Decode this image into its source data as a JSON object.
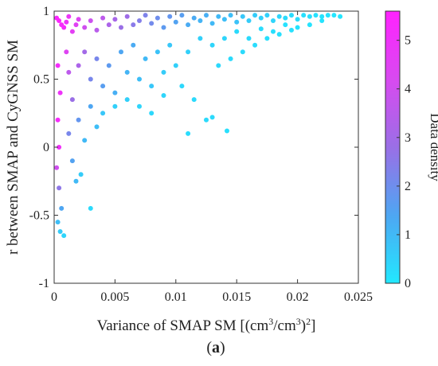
{
  "chart_data": {
    "type": "scatter",
    "title": "",
    "xlabel": {
      "base": "Variance of SMAP SM [(cm",
      "sup1": "3",
      "mid": "/cm",
      "sup2": "3",
      "close": ")",
      "sup3": "2",
      "end": "]"
    },
    "ylabel": "r between SMAP and CyGNSS SM",
    "xlim": [
      0,
      0.025
    ],
    "ylim": [
      -1,
      1
    ],
    "xticks": [
      0,
      0.005,
      0.01,
      0.015,
      0.02,
      0.025
    ],
    "xtick_labels": [
      "0",
      "0.005",
      "0.01",
      "0.015",
      "0.02",
      "0.025"
    ],
    "yticks": [
      -1,
      -0.5,
      0,
      0.5,
      1
    ],
    "ytick_labels": [
      "-1",
      "-0.5",
      "0",
      "0.5",
      "1"
    ],
    "grid": false,
    "colorbar": {
      "label": "Data density",
      "range": [
        0,
        5.6
      ],
      "ticks": [
        0,
        1,
        2,
        3,
        4,
        5
      ],
      "tick_labels": [
        "0",
        "1",
        "2",
        "3",
        "4",
        "5"
      ],
      "colors": [
        "#22e8ff",
        "#4ea6f2",
        "#9a6fe6",
        "#d84af0",
        "#ff22ff"
      ]
    },
    "panel_label": {
      "open": "(",
      "letter": "a",
      "close": ")"
    },
    "point_color_low": "#22e8ff",
    "point_color_high": "#ff22ff",
    "series": [
      {
        "points_x_r_density": [
          [
            0.0002,
            0.95,
            5.4
          ],
          [
            0.0004,
            0.93,
            5.5
          ],
          [
            0.0006,
            0.9,
            5.3
          ],
          [
            0.0008,
            0.88,
            5.2
          ],
          [
            0.001,
            0.92,
            5.0
          ],
          [
            0.0012,
            0.96,
            4.9
          ],
          [
            0.0015,
            0.85,
            4.6
          ],
          [
            0.0018,
            0.9,
            4.5
          ],
          [
            0.002,
            0.94,
            4.4
          ],
          [
            0.0025,
            0.88,
            4.0
          ],
          [
            0.003,
            0.93,
            3.9
          ],
          [
            0.0035,
            0.86,
            3.5
          ],
          [
            0.004,
            0.95,
            3.6
          ],
          [
            0.0045,
            0.9,
            3.2
          ],
          [
            0.005,
            0.94,
            3.1
          ],
          [
            0.0055,
            0.88,
            2.8
          ],
          [
            0.006,
            0.96,
            2.9
          ],
          [
            0.0065,
            0.9,
            2.5
          ],
          [
            0.007,
            0.93,
            2.4
          ],
          [
            0.0075,
            0.97,
            2.3
          ],
          [
            0.008,
            0.91,
            2.1
          ],
          [
            0.0085,
            0.95,
            2.0
          ],
          [
            0.009,
            0.88,
            1.7
          ],
          [
            0.0095,
            0.96,
            1.8
          ],
          [
            0.01,
            0.92,
            1.5
          ],
          [
            0.0105,
            0.97,
            1.6
          ],
          [
            0.011,
            0.9,
            1.3
          ],
          [
            0.0115,
            0.95,
            1.3
          ],
          [
            0.012,
            0.93,
            1.1
          ],
          [
            0.0125,
            0.97,
            1.2
          ],
          [
            0.013,
            0.91,
            1.0
          ],
          [
            0.0135,
            0.96,
            1.0
          ],
          [
            0.014,
            0.94,
            0.9
          ],
          [
            0.0145,
            0.97,
            0.9
          ],
          [
            0.015,
            0.92,
            0.8
          ],
          [
            0.0155,
            0.96,
            0.7
          ],
          [
            0.016,
            0.93,
            0.6
          ],
          [
            0.0165,
            0.97,
            0.6
          ],
          [
            0.017,
            0.95,
            0.5
          ],
          [
            0.0175,
            0.97,
            0.5
          ],
          [
            0.018,
            0.93,
            0.4
          ],
          [
            0.0185,
            0.96,
            0.4
          ],
          [
            0.019,
            0.95,
            0.3
          ],
          [
            0.0195,
            0.97,
            0.3
          ],
          [
            0.02,
            0.94,
            0.25
          ],
          [
            0.0205,
            0.97,
            0.2
          ],
          [
            0.021,
            0.96,
            0.2
          ],
          [
            0.0215,
            0.97,
            0.15
          ],
          [
            0.022,
            0.96,
            0.1
          ],
          [
            0.0225,
            0.97,
            0.1
          ],
          [
            0.023,
            0.97,
            0.05
          ],
          [
            0.0235,
            0.96,
            0.05
          ],
          [
            0.0003,
            0.6,
            5.2
          ],
          [
            0.0005,
            0.4,
            5.0
          ],
          [
            0.0003,
            0.2,
            5.3
          ],
          [
            0.0004,
            0.0,
            5.1
          ],
          [
            0.0002,
            -0.15,
            4.0
          ],
          [
            0.0004,
            -0.3,
            2.6
          ],
          [
            0.0006,
            -0.45,
            1.4
          ],
          [
            0.0003,
            -0.55,
            0.9
          ],
          [
            0.0005,
            -0.62,
            0.6
          ],
          [
            0.0008,
            -0.65,
            0.4
          ],
          [
            0.001,
            0.7,
            4.4
          ],
          [
            0.0012,
            0.55,
            3.6
          ],
          [
            0.0015,
            0.35,
            2.8
          ],
          [
            0.0012,
            0.1,
            2.2
          ],
          [
            0.0015,
            -0.1,
            1.5
          ],
          [
            0.0018,
            -0.25,
            1.0
          ],
          [
            0.002,
            0.6,
            3.2
          ],
          [
            0.0025,
            0.7,
            3.0
          ],
          [
            0.003,
            0.5,
            2.2
          ],
          [
            0.0035,
            0.65,
            2.2
          ],
          [
            0.004,
            0.45,
            1.6
          ],
          [
            0.0045,
            0.6,
            1.7
          ],
          [
            0.005,
            0.4,
            1.2
          ],
          [
            0.0055,
            0.7,
            1.4
          ],
          [
            0.006,
            0.55,
            1.1
          ],
          [
            0.0065,
            0.75,
            1.3
          ],
          [
            0.007,
            0.5,
            0.9
          ],
          [
            0.0075,
            0.65,
            1.0
          ],
          [
            0.008,
            0.45,
            0.7
          ],
          [
            0.0085,
            0.7,
            0.8
          ],
          [
            0.009,
            0.55,
            0.6
          ],
          [
            0.0095,
            0.75,
            0.7
          ],
          [
            0.01,
            0.6,
            0.5
          ],
          [
            0.011,
            0.7,
            0.5
          ],
          [
            0.012,
            0.8,
            0.5
          ],
          [
            0.013,
            0.75,
            0.4
          ],
          [
            0.014,
            0.8,
            0.4
          ],
          [
            0.015,
            0.85,
            0.3
          ],
          [
            0.016,
            0.8,
            0.3
          ],
          [
            0.017,
            0.87,
            0.25
          ],
          [
            0.018,
            0.85,
            0.2
          ],
          [
            0.019,
            0.9,
            0.15
          ],
          [
            0.02,
            0.88,
            0.1
          ],
          [
            0.002,
            0.2,
            1.8
          ],
          [
            0.003,
            0.3,
            1.4
          ],
          [
            0.0025,
            0.05,
            1.0
          ],
          [
            0.0035,
            0.15,
            0.9
          ],
          [
            0.003,
            -0.45,
            0.3
          ],
          [
            0.0022,
            -0.2,
            0.6
          ],
          [
            0.004,
            0.25,
            0.7
          ],
          [
            0.005,
            0.3,
            0.5
          ],
          [
            0.006,
            0.35,
            0.5
          ],
          [
            0.0125,
            0.2,
            0.3
          ],
          [
            0.013,
            0.22,
            0.3
          ],
          [
            0.0142,
            0.12,
            0.2
          ],
          [
            0.011,
            0.1,
            0.25
          ],
          [
            0.0115,
            0.35,
            0.3
          ],
          [
            0.0105,
            0.45,
            0.35
          ],
          [
            0.009,
            0.38,
            0.4
          ],
          [
            0.008,
            0.25,
            0.35
          ],
          [
            0.007,
            0.3,
            0.4
          ],
          [
            0.0135,
            0.6,
            0.35
          ],
          [
            0.0145,
            0.65,
            0.3
          ],
          [
            0.0155,
            0.7,
            0.3
          ],
          [
            0.0165,
            0.75,
            0.25
          ],
          [
            0.0175,
            0.8,
            0.2
          ],
          [
            0.0185,
            0.83,
            0.2
          ],
          [
            0.0195,
            0.86,
            0.15
          ],
          [
            0.021,
            0.9,
            0.1
          ],
          [
            0.022,
            0.93,
            0.1
          ]
        ]
      }
    ]
  }
}
